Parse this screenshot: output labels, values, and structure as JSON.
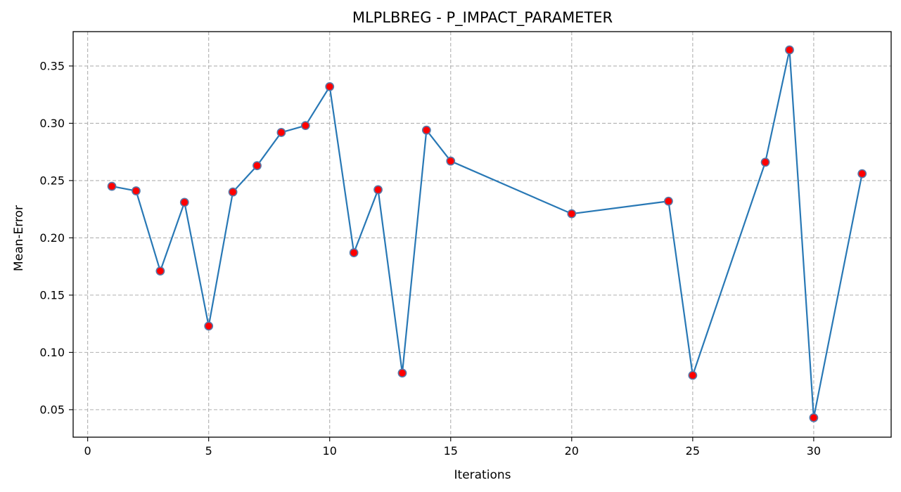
{
  "chart_data": {
    "type": "line",
    "title": "MLPLBREG - P_IMPACT_PARAMETER",
    "xlabel": "Iterations",
    "ylabel": "Mean-Error",
    "xlim": [
      -0.6,
      33.2
    ],
    "ylim": [
      0.026,
      0.38
    ],
    "xticks": [
      0,
      5,
      10,
      15,
      20,
      25,
      30
    ],
    "yticks": [
      0.05,
      0.1,
      0.15,
      0.2,
      0.25,
      0.3,
      0.35
    ],
    "ytick_labels": [
      "0.05",
      "0.10",
      "0.15",
      "0.20",
      "0.25",
      "0.30",
      "0.35"
    ],
    "grid": true,
    "series": [
      {
        "line_color": "#2878b5",
        "marker_face": "#ff0000",
        "marker_edge": "#5878a8",
        "points": [
          {
            "x": 1,
            "y": 0.245
          },
          {
            "x": 2,
            "y": 0.241
          },
          {
            "x": 3,
            "y": 0.171
          },
          {
            "x": 4,
            "y": 0.231
          },
          {
            "x": 5,
            "y": 0.123
          },
          {
            "x": 6,
            "y": 0.24
          },
          {
            "x": 7,
            "y": 0.263
          },
          {
            "x": 8,
            "y": 0.292
          },
          {
            "x": 9,
            "y": 0.298
          },
          {
            "x": 10,
            "y": 0.332
          },
          {
            "x": 11,
            "y": 0.187
          },
          {
            "x": 12,
            "y": 0.242
          },
          {
            "x": 13,
            "y": 0.082
          },
          {
            "x": 14,
            "y": 0.294
          },
          {
            "x": 15,
            "y": 0.267
          },
          {
            "x": 20,
            "y": 0.221
          },
          {
            "x": 24,
            "y": 0.232
          },
          {
            "x": 25,
            "y": 0.08
          },
          {
            "x": 28,
            "y": 0.266
          },
          {
            "x": 29,
            "y": 0.364
          },
          {
            "x": 30,
            "y": 0.043
          },
          {
            "x": 32,
            "y": 0.256
          }
        ]
      }
    ]
  }
}
